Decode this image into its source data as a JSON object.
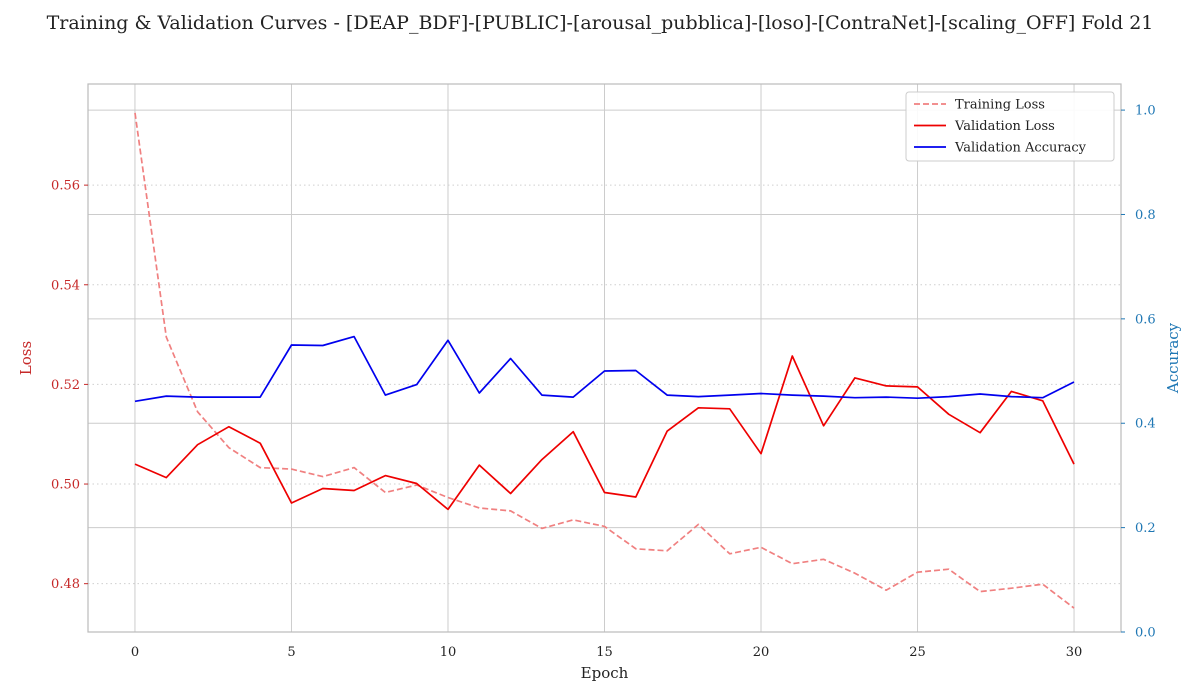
{
  "chart_data": {
    "type": "line",
    "title": "Training & Validation Curves - [DEAP_BDF]-[PUBLIC]-[arousal_pubblica]-[loso]-[ContraNet]-[scaling_OFF] Fold 21",
    "xlabel": "Epoch",
    "ylabel_left": "Loss",
    "ylabel_right": "Accuracy",
    "xlim": [
      -1.5,
      31.5
    ],
    "ylim_left": [
      0.4703,
      0.5803
    ],
    "ylim_right": [
      0.0,
      1.05
    ],
    "x_ticks": [
      0,
      5,
      10,
      15,
      20,
      25,
      30
    ],
    "y_ticks_left": [
      0.48,
      0.5,
      0.52,
      0.54,
      0.56
    ],
    "y_ticks_right": [
      0.0,
      0.2,
      0.4,
      0.6,
      0.8,
      1.0
    ],
    "grid": true,
    "legend_position": "top-right",
    "colors": {
      "training_loss": "#f08080",
      "validation_loss": "#ee0000",
      "validation_accuracy": "#0000ee",
      "left_axis": "#c62828",
      "right_axis": "#1f77b4"
    },
    "x": [
      0,
      1,
      2,
      3,
      4,
      5,
      6,
      7,
      8,
      9,
      10,
      11,
      12,
      13,
      14,
      15,
      16,
      17,
      18,
      19,
      20,
      21,
      22,
      23,
      24,
      25,
      26,
      27,
      28,
      29,
      30
    ],
    "series": [
      {
        "name": "Training Loss",
        "axis": "left",
        "style": "dashed",
        "values": [
          0.5745,
          0.5295,
          0.5145,
          0.5073,
          0.5033,
          0.503,
          0.5015,
          0.5033,
          0.4983,
          0.4998,
          0.4973,
          0.4952,
          0.4946,
          0.4911,
          0.4928,
          0.4915,
          0.487,
          0.4866,
          0.4919,
          0.486,
          0.4873,
          0.484,
          0.4849,
          0.4821,
          0.4787,
          0.4823,
          0.4829,
          0.4784,
          0.4791,
          0.4799,
          0.4751
        ]
      },
      {
        "name": "Validation Loss",
        "axis": "left",
        "style": "solid",
        "values": [
          0.504,
          0.5013,
          0.5079,
          0.5115,
          0.5082,
          0.4962,
          0.4991,
          0.4987,
          0.5017,
          0.5001,
          0.4949,
          0.5038,
          0.4981,
          0.5049,
          0.5105,
          0.4983,
          0.4974,
          0.5106,
          0.5153,
          0.5151,
          0.5061,
          0.5257,
          0.5117,
          0.5213,
          0.5197,
          0.5195,
          0.514,
          0.5103,
          0.5186,
          0.5167,
          0.504
        ]
      },
      {
        "name": "Validation Accuracy",
        "axis": "right",
        "style": "solid",
        "values": [
          0.442,
          0.452,
          0.45,
          0.45,
          0.45,
          0.55,
          0.549,
          0.566,
          0.454,
          0.474,
          0.559,
          0.458,
          0.524,
          0.454,
          0.45,
          0.5,
          0.501,
          0.454,
          0.451,
          0.454,
          0.457,
          0.454,
          0.452,
          0.449,
          0.45,
          0.448,
          0.451,
          0.456,
          0.451,
          0.449,
          0.479
        ]
      }
    ]
  }
}
